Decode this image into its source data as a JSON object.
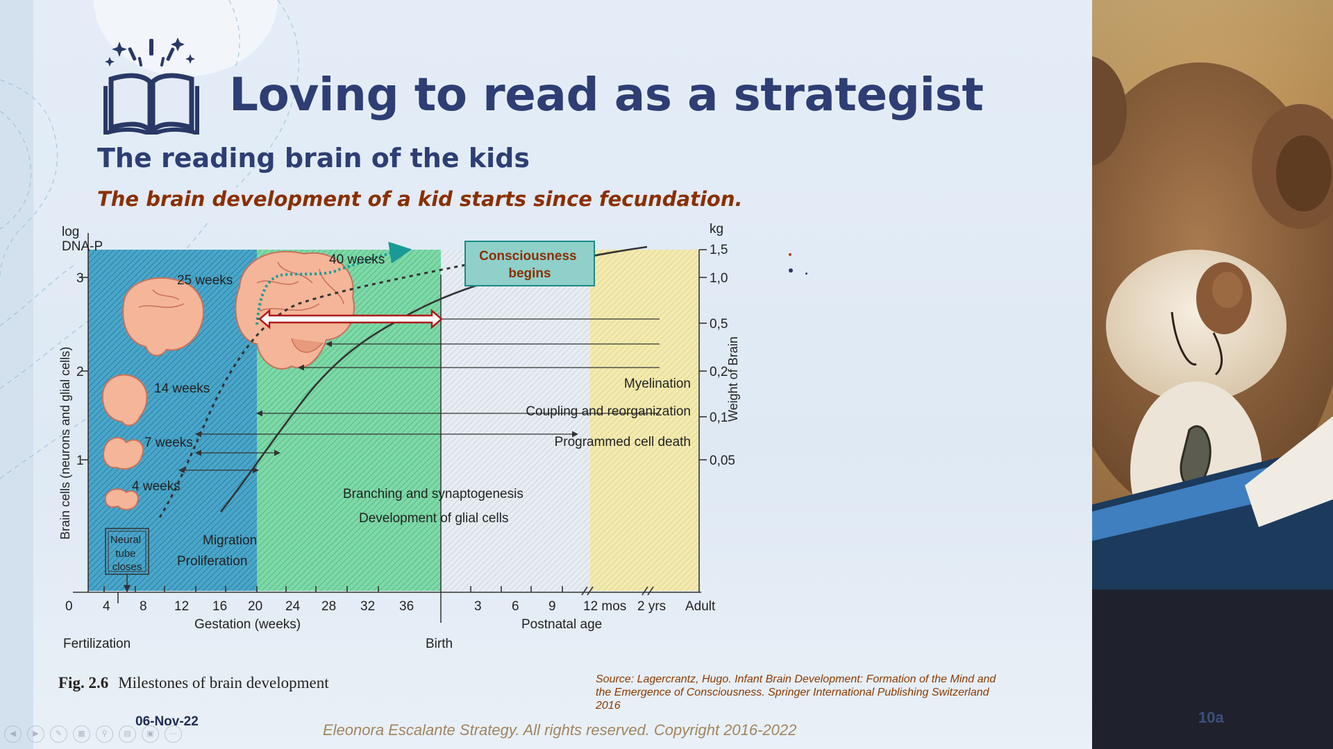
{
  "header": {
    "title": "Loving to read as a strategist",
    "subtitle": "The reading brain of the kids",
    "tagline": "The brain development of a kid starts since fecundation."
  },
  "figure": {
    "left_axis": {
      "top_label_line1": "log",
      "top_label_line2": "DNA-P",
      "title": "Brain cells (neurons and glial cells)",
      "ticks": [
        "3",
        "2",
        "1"
      ]
    },
    "right_axis": {
      "unit": "kg",
      "title": "Weight of Brain",
      "ticks": [
        "1,5",
        "1,0",
        "0,5",
        "0,2",
        "0,1",
        "0,05"
      ]
    },
    "x_axis": {
      "gestation_ticks": [
        "0",
        "4",
        "8",
        "12",
        "16",
        "20",
        "24",
        "28",
        "32",
        "36"
      ],
      "postnatal_ticks": [
        "3",
        "6",
        "9",
        "12 mos",
        "2 yrs",
        "Adult"
      ],
      "gestation_label": "Gestation (weeks)",
      "postnatal_label": "Postnatal age",
      "fertilization_label": "Fertilization",
      "birth_label": "Birth"
    },
    "brain_labels": [
      "40 weeks",
      "25 weeks",
      "14 weeks",
      "7 weeks",
      "4 weeks"
    ],
    "neural_tube_box": [
      "Neural",
      "tube",
      "closes"
    ],
    "consciousness_box": [
      "Consciousness",
      "begins"
    ],
    "processes": [
      "Myelination",
      "Coupling and reorganization",
      "Programmed cell death",
      "Branching and synaptogenesis",
      "Development of glial cells",
      "Migration",
      "Proliferation"
    ],
    "colors": {
      "gestation_early": "#4aa6c9",
      "gestation_late": "#67cf9b",
      "postnatal_infant": "#d5dde8",
      "postnatal_child": "#efe6a8",
      "arrow_red": "#b01818",
      "consciousness": "#1a9a96"
    }
  },
  "figure_caption": {
    "label": "Fig. 2.6",
    "text": "Milestones of brain development"
  },
  "source": "Source: Lagercrantz, Hugo. Infant Brain Development: Formation of the Mind and the Emergence of Consciousness. Springer International Publishing Switzerland 2016",
  "footer": {
    "date": "06-Nov-22",
    "copyright": "Eleonora Escalante Strategy. All rights reserved. Copyright 2016-2022"
  },
  "slide_number": "10a"
}
